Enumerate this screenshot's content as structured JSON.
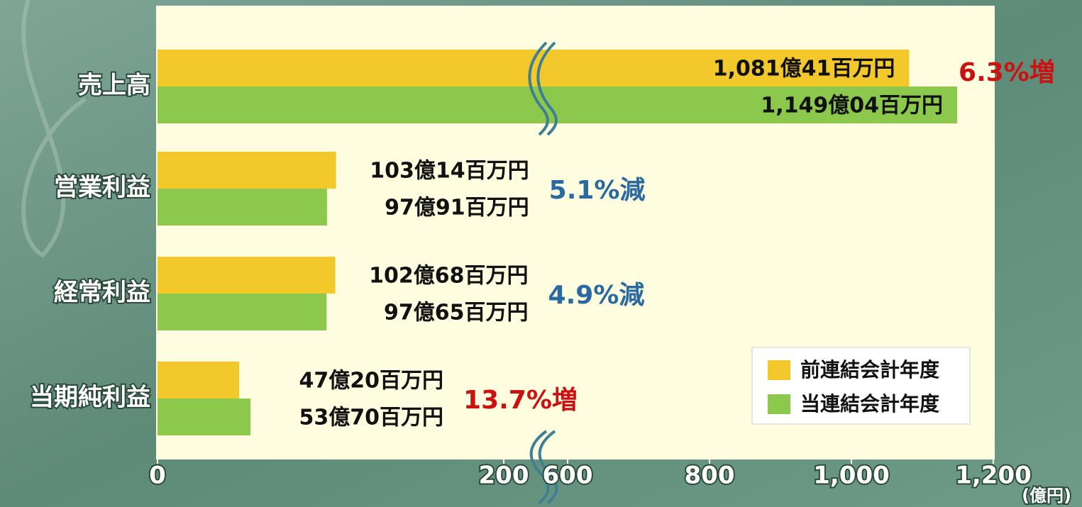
{
  "chart_data": {
    "type": "bar",
    "orientation": "horizontal",
    "categories": [
      "売上高",
      "営業利益",
      "経常利益",
      "当期純利益"
    ],
    "series": [
      {
        "name": "前連結会計年度",
        "color": "#f2c82a",
        "values": [
          1081.41,
          103.14,
          102.68,
          47.2
        ],
        "value_labels": [
          "1,081億41百万円",
          "103億14百万円",
          "102億68百万円",
          "47億20百万円"
        ]
      },
      {
        "name": "当連結会計年度",
        "color": "#8cc84b",
        "values": [
          1149.04,
          97.91,
          97.65,
          53.7
        ],
        "value_labels": [
          "1,149億04百万円",
          "97億91百万円",
          "97億65百万円",
          "53億70百万円"
        ]
      }
    ],
    "annotations": [
      {
        "text": "6.3%増",
        "color": "#cc1111"
      },
      {
        "text": "5.1%減",
        "color": "#2a6aa0"
      },
      {
        "text": "4.9%減",
        "color": "#2a6aa0"
      },
      {
        "text": "13.7%増",
        "color": "#cc1111"
      }
    ],
    "xlim": [
      0,
      1200
    ],
    "axis_break": [
      200,
      600
    ],
    "xticks": [
      0,
      200,
      600,
      800,
      {
        "value": 1000,
        "label": "1,000"
      },
      {
        "value": 1200,
        "label": "1,200"
      }
    ],
    "x_unit": "(億円)",
    "legend": "lower right"
  }
}
